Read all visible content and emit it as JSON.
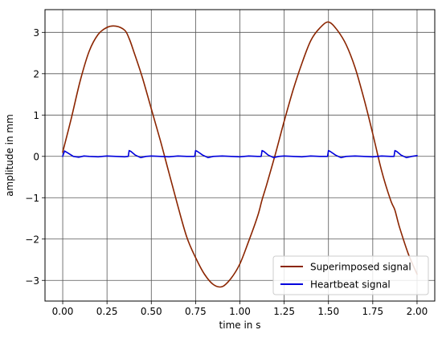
{
  "colors": {
    "superimposed": "#8b2500",
    "heartbeat": "#0000dd",
    "grid": "#555555",
    "axis": "#000000"
  },
  "chart_data": {
    "type": "line",
    "xlabel": "time in s",
    "ylabel": "amplitude in mm",
    "xlim": [
      -0.1,
      2.1
    ],
    "ylim": [
      -3.5,
      3.55
    ],
    "grid": true,
    "legend_position": "lower-right",
    "x_ticks": [
      0.0,
      0.25,
      0.5,
      0.75,
      1.0,
      1.25,
      1.5,
      1.75,
      2.0
    ],
    "x_tick_labels": [
      "0.00",
      "0.25",
      "0.50",
      "0.75",
      "1.00",
      "1.25",
      "1.50",
      "1.75",
      "2.00"
    ],
    "y_ticks": [
      -3,
      -2,
      -1,
      0,
      1,
      2,
      3
    ],
    "y_tick_labels": [
      "−3",
      "−2",
      "−1",
      "0",
      "1",
      "2",
      "3"
    ],
    "series": [
      {
        "name": "Superimposed signal",
        "x": [
          0.0,
          0.05,
          0.1,
          0.15,
          0.2,
          0.25,
          0.3,
          0.35,
          0.375,
          0.4,
          0.45,
          0.5,
          0.55,
          0.6,
          0.65,
          0.7,
          0.75,
          0.8,
          0.85,
          0.9,
          0.95,
          1.0,
          1.05,
          1.1,
          1.125,
          1.15,
          1.2,
          1.25,
          1.3,
          1.35,
          1.4,
          1.45,
          1.5,
          1.55,
          1.6,
          1.65,
          1.7,
          1.75,
          1.8,
          1.85,
          1.875,
          1.9,
          1.95,
          2.0
        ],
        "y": [
          0.1,
          0.95,
          1.85,
          2.55,
          2.95,
          3.12,
          3.15,
          3.05,
          2.85,
          2.55,
          1.9,
          1.15,
          0.4,
          -0.4,
          -1.2,
          -1.95,
          -2.45,
          -2.85,
          -3.1,
          -3.15,
          -2.95,
          -2.6,
          -2.05,
          -1.45,
          -1.05,
          -0.7,
          0.05,
          0.85,
          1.6,
          2.25,
          2.8,
          3.1,
          3.25,
          3.05,
          2.7,
          2.15,
          1.4,
          0.55,
          -0.35,
          -1.05,
          -1.3,
          -1.7,
          -2.35,
          -2.85
        ]
      },
      {
        "name": "Heartbeat signal",
        "x": [
          0.0,
          0.01,
          0.03,
          0.06,
          0.09,
          0.12,
          0.15,
          0.2,
          0.25,
          0.3,
          0.35,
          0.37,
          0.375,
          0.385,
          0.41,
          0.44,
          0.47,
          0.5,
          0.55,
          0.6,
          0.65,
          0.7,
          0.745,
          0.75,
          0.76,
          0.79,
          0.82,
          0.85,
          0.9,
          0.95,
          1.0,
          1.05,
          1.1,
          1.12,
          1.125,
          1.135,
          1.16,
          1.19,
          1.22,
          1.25,
          1.3,
          1.35,
          1.4,
          1.45,
          1.495,
          1.5,
          1.51,
          1.54,
          1.57,
          1.6,
          1.65,
          1.7,
          1.75,
          1.8,
          1.85,
          1.87,
          1.875,
          1.885,
          1.91,
          1.94,
          1.97,
          2.0
        ],
        "y": [
          0.0,
          0.13,
          0.08,
          0.0,
          -0.02,
          0.01,
          0.0,
          -0.01,
          0.01,
          0.0,
          -0.01,
          0.0,
          0.14,
          0.12,
          0.03,
          -0.03,
          0.0,
          0.01,
          0.0,
          -0.01,
          0.01,
          0.0,
          0.0,
          0.14,
          0.12,
          0.03,
          -0.03,
          0.0,
          0.01,
          0.0,
          -0.01,
          0.01,
          0.0,
          0.0,
          0.14,
          0.12,
          0.03,
          -0.03,
          0.0,
          0.01,
          0.0,
          -0.01,
          0.01,
          0.0,
          0.0,
          0.14,
          0.12,
          0.03,
          -0.03,
          0.0,
          0.01,
          0.0,
          -0.01,
          0.01,
          0.0,
          0.0,
          0.14,
          0.12,
          0.03,
          -0.03,
          0.0,
          0.02
        ]
      }
    ]
  }
}
